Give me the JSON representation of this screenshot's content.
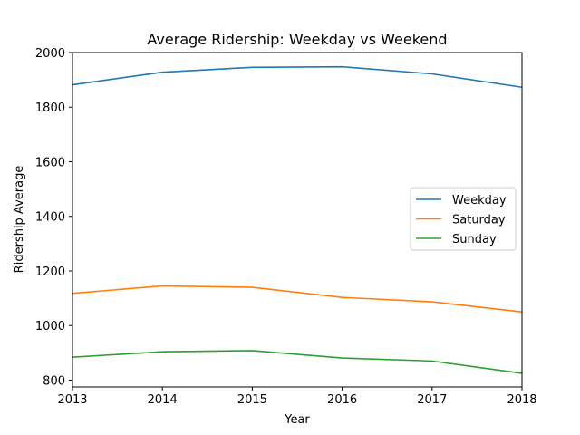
{
  "chart_data": {
    "type": "line",
    "title": "Average Ridership: Weekday vs Weekend",
    "xlabel": "Year",
    "ylabel": "Ridership Average",
    "x": [
      2013,
      2014,
      2015,
      2016,
      2017,
      2018
    ],
    "xlim": [
      2013,
      2018
    ],
    "ylim": [
      775,
      2000
    ],
    "xticks": [
      "2013",
      "2014",
      "2015",
      "2016",
      "2017",
      "2018"
    ],
    "yticks": [
      "800",
      "1000",
      "1200",
      "1400",
      "1600",
      "1800",
      "2000"
    ],
    "grid": false,
    "legend_position": "center-right",
    "series": [
      {
        "name": "Weekday",
        "color": "#1f77b4",
        "values": [
          1882,
          1928,
          1946,
          1948,
          1922,
          1873
        ]
      },
      {
        "name": "Saturday",
        "color": "#ff7f0e",
        "values": [
          1118,
          1145,
          1140,
          1103,
          1087,
          1050
        ]
      },
      {
        "name": "Sunday",
        "color": "#2ca02c",
        "values": [
          884,
          904,
          908,
          881,
          870,
          825
        ]
      }
    ]
  }
}
